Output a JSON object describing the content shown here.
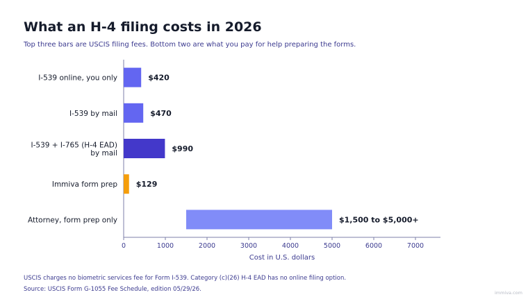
{
  "header": {
    "title": "What an H-4 filing costs in 2026",
    "subtitle": "Top three bars are USCIS filing fees. Bottom two are what you pay for help preparing the forms."
  },
  "chart_data": {
    "type": "bar",
    "orientation": "horizontal",
    "categories": [
      "I-539 online, you only",
      "I-539 by mail",
      "I-539 + I-765 (H-4 EAD)\nby mail",
      "Immiva form prep",
      "Attorney, form prep only"
    ],
    "bars": [
      {
        "start": 0,
        "end": 420,
        "label": "$420",
        "color": "#6366f1"
      },
      {
        "start": 0,
        "end": 470,
        "label": "$470",
        "color": "#6366f1"
      },
      {
        "start": 0,
        "end": 990,
        "label": "$990",
        "color": "#4338ca"
      },
      {
        "start": 0,
        "end": 129,
        "label": "$129",
        "color": "#f59e0b"
      },
      {
        "start": 1500,
        "end": 5000,
        "label": "$1,500 to $5,000+",
        "color": "#818cf8"
      }
    ],
    "xlabel": "Cost in U.S. dollars",
    "xlim": [
      0,
      7600
    ],
    "xticks": [
      0,
      1000,
      2000,
      3000,
      4000,
      5000,
      6000,
      7000
    ],
    "grid": false,
    "legend": "none"
  },
  "footer": {
    "note": "USCIS charges no biometric services fee for Form I-539. Category (c)(26) H-4 EAD has no online filing option.",
    "source": "Source: USCIS Form G-1055 Fee Schedule, edition 05/29/26.",
    "watermark": "immiva.com"
  }
}
